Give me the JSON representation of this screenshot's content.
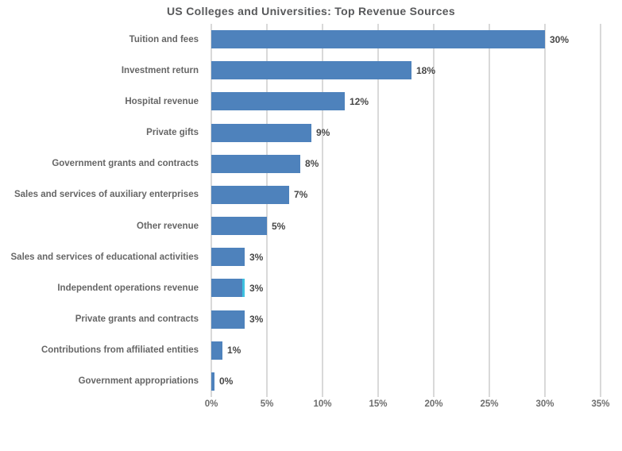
{
  "chart_data": {
    "type": "bar",
    "orientation": "horizontal",
    "title": "US Colleges and Universities: Top Revenue Sources",
    "categories": [
      "Tuition and fees",
      "Investment return",
      "Hospital revenue",
      "Private gifts",
      "Government grants and contracts",
      "Sales and services of auxiliary enterprises",
      "Other revenue",
      "Sales and services of educational activities",
      "Independent operations revenue",
      "Private grants and contracts",
      "Contributions from affiliated entities",
      "Government appropriations"
    ],
    "values": [
      30,
      18,
      12,
      9,
      8,
      7,
      5,
      3,
      3,
      3,
      1,
      0
    ],
    "data_labels": [
      "30%",
      "18%",
      "12%",
      "9%",
      "8%",
      "7%",
      "5%",
      "3%",
      "3%",
      "3%",
      "1%",
      "0%"
    ],
    "xlabel": "",
    "ylabel": "",
    "xlim": [
      0,
      35
    ],
    "x_tick_values": [
      0,
      5,
      10,
      15,
      20,
      25,
      30,
      35
    ],
    "x_tick_labels": [
      "0%",
      "5%",
      "10%",
      "15%",
      "20%",
      "25%",
      "30%",
      "35%"
    ],
    "grid": "vertical-only",
    "legend": "none",
    "colors": {
      "bar": "#4E82BC",
      "gridline": "#D9D9D9",
      "title_text": "#58595B",
      "category_text": "#666666",
      "data_label_text": "#474747",
      "tick_text": "#6E6E6E",
      "background": "#FFFFFF",
      "cursor_stripe": "#3EC1E0"
    },
    "highlight": {
      "category_index": 8,
      "stripe_color": "#3EC1E0"
    }
  }
}
